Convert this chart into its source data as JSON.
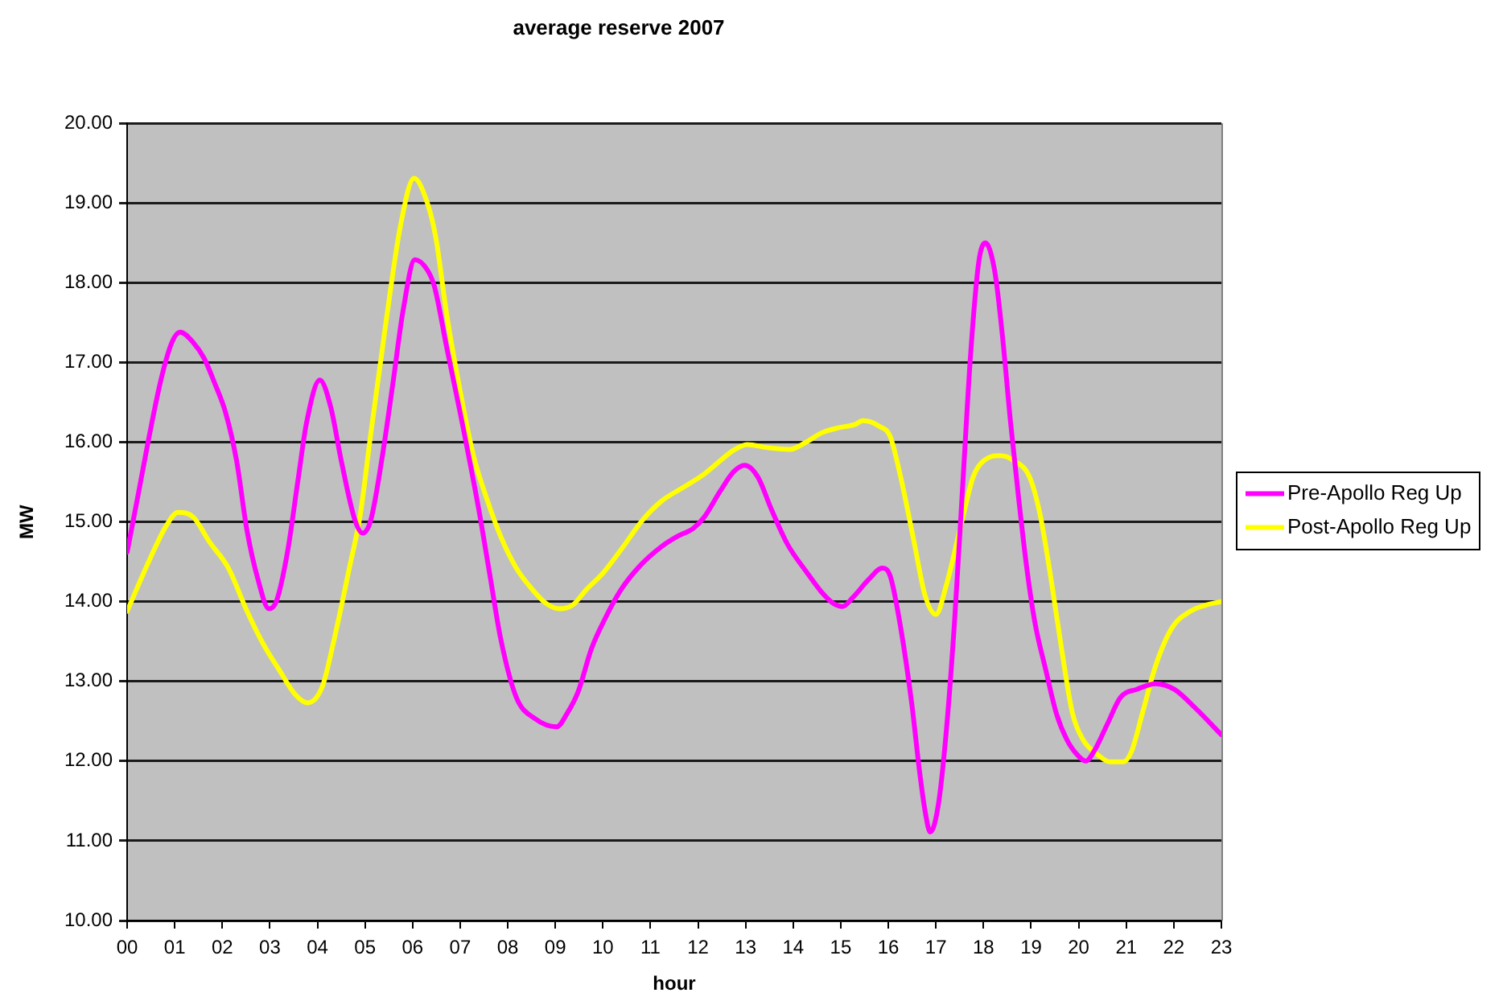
{
  "chart_data": {
    "type": "line",
    "title": "average reserve 2007",
    "xlabel": "hour",
    "ylabel": "MW",
    "xlim": [
      0,
      23
    ],
    "xticks": [
      {
        "value": 0,
        "label": "00"
      },
      {
        "value": 1,
        "label": "01"
      },
      {
        "value": 2,
        "label": "02"
      },
      {
        "value": 3,
        "label": "03"
      },
      {
        "value": 4,
        "label": "04"
      },
      {
        "value": 5,
        "label": "05"
      },
      {
        "value": 6,
        "label": "06"
      },
      {
        "value": 7,
        "label": "07"
      },
      {
        "value": 8,
        "label": "08"
      },
      {
        "value": 9,
        "label": "09"
      },
      10,
      11,
      12,
      13,
      14,
      15,
      16,
      17,
      18,
      19,
      20,
      21,
      22,
      23
    ],
    "ylim": [
      10,
      20
    ],
    "yticks": [
      {
        "value": 10,
        "label": "10.00"
      },
      {
        "value": 11,
        "label": "11.00"
      },
      {
        "value": 12,
        "label": "12.00"
      },
      {
        "value": 13,
        "label": "13.00"
      },
      {
        "value": 14,
        "label": "14.00"
      },
      {
        "value": 15,
        "label": "15.00"
      },
      {
        "value": 16,
        "label": "16.00"
      },
      {
        "value": 17,
        "label": "17.00"
      },
      {
        "value": 18,
        "label": "18.00"
      },
      {
        "value": 19,
        "label": "19.00"
      },
      {
        "value": 20,
        "label": "20.00"
      }
    ],
    "grid": "y",
    "legend": "right",
    "marker": "none",
    "line_style": "solid",
    "series": [
      {
        "name": "Pre-Apollo Reg Up",
        "color": "#ff00ff",
        "x": [
          0,
          0.26,
          0.43,
          0.71,
          0.94,
          1.11,
          1.39,
          1.62,
          1.84,
          2.07,
          2.3,
          2.52,
          2.75,
          2.98,
          3.14,
          3.37,
          3.6,
          3.77,
          4.05,
          4.28,
          4.5,
          4.79,
          4.95,
          5.12,
          5.35,
          5.58,
          5.8,
          6.05,
          6.31,
          6.46,
          6.72,
          7.0,
          7.39,
          7.62,
          7.85,
          8.18,
          8.58,
          9.03,
          9.25,
          9.48,
          9.76,
          10.04,
          10.38,
          10.78,
          11.23,
          11.57,
          11.9,
          12.13,
          12.47,
          12.75,
          12.98,
          13.26,
          13.54,
          13.88,
          14.27,
          14.61,
          14.84,
          15.04,
          15.25,
          15.59,
          15.87,
          16.04,
          16.26,
          16.49,
          16.66,
          16.77,
          16.88,
          17.05,
          17.22,
          17.39,
          17.56,
          17.73,
          17.9,
          18.04,
          18.24,
          18.4,
          18.57,
          18.74,
          18.91,
          19.08,
          19.31,
          19.53,
          19.76,
          20.0,
          20.15,
          20.32,
          20.6,
          20.88,
          21.22,
          21.62,
          22.01,
          22.46,
          23
        ],
        "values": [
          14.62,
          15.43,
          15.97,
          16.78,
          17.25,
          17.38,
          17.25,
          17.05,
          16.74,
          16.37,
          15.77,
          14.89,
          14.28,
          13.91,
          14.01,
          14.62,
          15.56,
          16.24,
          16.78,
          16.44,
          15.77,
          15.02,
          14.86,
          15.02,
          15.77,
          16.71,
          17.65,
          18.29,
          18.16,
          17.95,
          17.18,
          16.37,
          15.16,
          14.35,
          13.54,
          12.8,
          12.53,
          12.43,
          12.6,
          12.87,
          13.41,
          13.78,
          14.15,
          14.45,
          14.69,
          14.82,
          14.92,
          15.06,
          15.39,
          15.63,
          15.71,
          15.56,
          15.16,
          14.72,
          14.38,
          14.11,
          13.98,
          13.94,
          14.05,
          14.28,
          14.42,
          14.32,
          13.67,
          12.73,
          11.85,
          11.38,
          11.11,
          11.45,
          12.39,
          13.74,
          15.43,
          17.11,
          18.26,
          18.5,
          18.13,
          17.32,
          16.24,
          15.29,
          14.42,
          13.74,
          13.14,
          12.6,
          12.26,
          12.06,
          12.0,
          12.12,
          12.46,
          12.8,
          12.9,
          12.97,
          12.9,
          12.66,
          12.33
        ]
      },
      {
        "name": "Post-Apollo Reg Up",
        "color": "#ffff00",
        "x": [
          0,
          0.49,
          0.83,
          1.07,
          1.39,
          1.73,
          2.13,
          2.52,
          2.86,
          3.2,
          3.54,
          3.79,
          4.1,
          4.33,
          4.67,
          4.9,
          5.12,
          5.46,
          5.75,
          6.03,
          6.31,
          6.49,
          6.72,
          7.0,
          7.28,
          7.56,
          7.85,
          8.18,
          8.52,
          8.8,
          9.09,
          9.37,
          9.65,
          9.99,
          10.38,
          10.83,
          11.23,
          11.68,
          12.13,
          12.47,
          12.75,
          13.03,
          13.48,
          13.93,
          14.27,
          14.61,
          14.95,
          15.29,
          15.47,
          15.81,
          16.04,
          16.26,
          16.54,
          16.77,
          17.0,
          17.22,
          17.5,
          17.78,
          18.01,
          18.35,
          18.63,
          18.97,
          19.19,
          19.42,
          19.64,
          19.87,
          20.1,
          20.38,
          20.66,
          20.94,
          21.11,
          21.34,
          21.62,
          21.96,
          22.35,
          22.69,
          23
        ],
        "values": [
          13.88,
          14.55,
          14.96,
          15.12,
          15.06,
          14.75,
          14.42,
          13.88,
          13.47,
          13.14,
          12.83,
          12.73,
          12.93,
          13.47,
          14.42,
          15.09,
          16.1,
          17.59,
          18.73,
          19.31,
          19.0,
          18.56,
          17.59,
          16.64,
          15.83,
          15.29,
          14.82,
          14.42,
          14.15,
          13.98,
          13.91,
          13.96,
          14.15,
          14.35,
          14.65,
          15.02,
          15.26,
          15.43,
          15.6,
          15.77,
          15.9,
          15.97,
          15.93,
          15.91,
          16.0,
          16.12,
          16.18,
          16.22,
          16.27,
          16.2,
          16.07,
          15.56,
          14.75,
          14.08,
          13.84,
          14.21,
          14.89,
          15.56,
          15.77,
          15.83,
          15.77,
          15.56,
          15.09,
          14.28,
          13.41,
          12.6,
          12.26,
          12.09,
          11.99,
          11.99,
          12.12,
          12.6,
          13.2,
          13.67,
          13.88,
          13.96,
          14.0
        ]
      }
    ]
  }
}
